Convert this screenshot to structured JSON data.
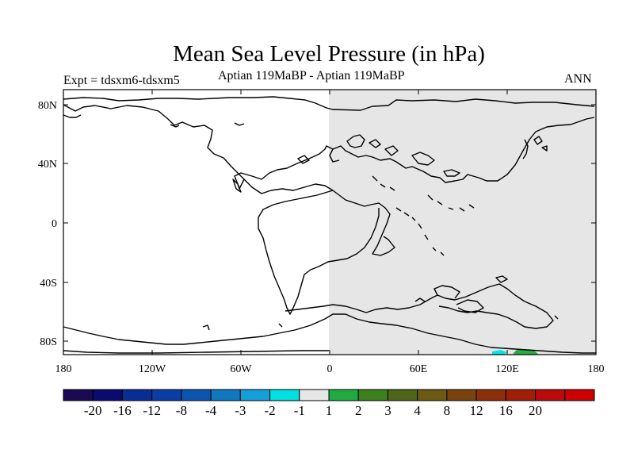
{
  "header": {
    "title": "Mean Sea Level Pressure (in hPa)",
    "experiment": "Expt = tdsxm6-tdsxm5",
    "subtitle": "Aptian   119MaBP - Aptian   119MaBP",
    "season": "ANN"
  },
  "map": {
    "lat_ticks": [
      "80N",
      "40N",
      "0",
      "40S",
      "80S"
    ],
    "lon_ticks": [
      "180",
      "120W",
      "60W",
      "0",
      "60E",
      "120E",
      "180"
    ],
    "shaded_region": {
      "lon_range": [
        0,
        180
      ],
      "value_class": "-1 to 1",
      "color": "#e6e6e6"
    },
    "anomaly_patches": [
      {
        "near_lon": 122,
        "near_lat": -87,
        "color": "#00e5e5"
      },
      {
        "near_lon": 132,
        "near_lat": -87,
        "color": "#2aaa44"
      }
    ]
  },
  "colorbar": {
    "colors": [
      "#1a0a55",
      "#0a0a70",
      "#082e96",
      "#0a3ea6",
      "#0a55b0",
      "#1078c0",
      "#13a0d8",
      "#00e0e0",
      "#e6e6e6",
      "#20aa40",
      "#3c7f1c",
      "#4f661a",
      "#6d5914",
      "#7a420e",
      "#8d2f0a",
      "#a01d06",
      "#bb0a0a",
      "#cc0000"
    ],
    "labels": [
      "-20",
      "-16",
      "-12",
      "-8",
      "-4",
      "-3",
      "-2",
      "-1",
      "1",
      "2",
      "3",
      "4",
      "8",
      "12",
      "16",
      "20"
    ]
  }
}
